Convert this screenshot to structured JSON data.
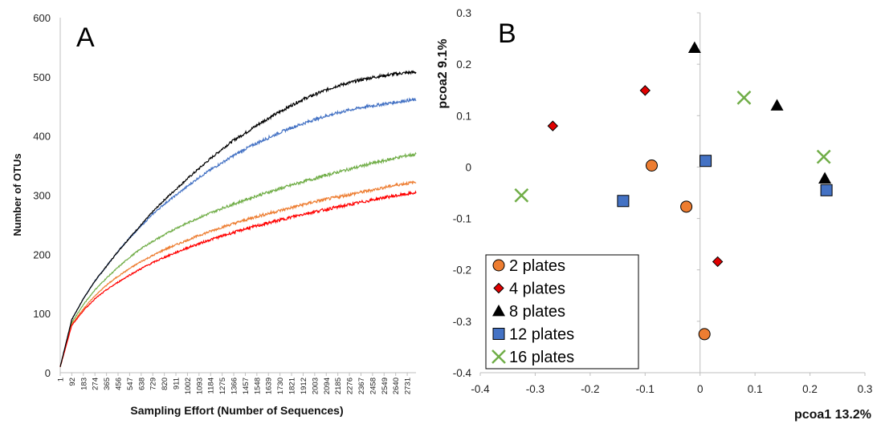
{
  "chart_data": [
    {
      "panel": "A",
      "type": "line",
      "xlabel": "Sampling Effort (Number of Sequences)",
      "ylabel": "Number of OTUs",
      "ylim": [
        0,
        600
      ],
      "yticks": [
        "0",
        "100",
        "200",
        "300",
        "400",
        "500",
        "600"
      ],
      "xtick_labels": [
        "1",
        "92",
        "183",
        "274",
        "365",
        "456",
        "547",
        "638",
        "729",
        "820",
        "911",
        "1002",
        "1093",
        "1184",
        "1275",
        "1366",
        "1457",
        "1548",
        "1639",
        "1730",
        "1821",
        "1912",
        "2003",
        "2094",
        "2185",
        "2276",
        "2367",
        "2458",
        "2549",
        "2640",
        "2731"
      ],
      "xlim": [
        1,
        2800
      ],
      "grid": false,
      "series": [
        {
          "color": "#000000",
          "x": [
            1,
            92,
            183,
            274,
            365,
            456,
            547,
            638,
            729,
            820,
            911,
            1002,
            1093,
            1184,
            1275,
            1366,
            1457,
            1548,
            1639,
            1730,
            1821,
            1912,
            2003,
            2094,
            2185,
            2276,
            2367,
            2458,
            2549,
            2640,
            2731,
            2800
          ],
          "values": [
            10,
            90,
            125,
            155,
            180,
            205,
            228,
            250,
            272,
            292,
            310,
            328,
            345,
            362,
            378,
            393,
            405,
            418,
            430,
            441,
            452,
            462,
            470,
            478,
            485,
            490,
            495,
            499,
            502,
            505,
            507,
            508
          ]
        },
        {
          "color": "#4472c4",
          "x": [
            1,
            92,
            183,
            274,
            365,
            456,
            547,
            638,
            729,
            820,
            911,
            1002,
            1093,
            1184,
            1275,
            1366,
            1457,
            1548,
            1639,
            1730,
            1821,
            1912,
            2003,
            2094,
            2185,
            2276,
            2367,
            2458,
            2549,
            2640,
            2731,
            2800
          ],
          "values": [
            10,
            90,
            125,
            155,
            180,
            205,
            228,
            248,
            268,
            285,
            300,
            315,
            330,
            343,
            355,
            367,
            378,
            388,
            397,
            406,
            414,
            421,
            428,
            434,
            439,
            444,
            448,
            451,
            454,
            457,
            460,
            461
          ]
        },
        {
          "color": "#70ad47",
          "x": [
            1,
            92,
            183,
            274,
            365,
            456,
            547,
            638,
            729,
            820,
            911,
            1002,
            1093,
            1184,
            1275,
            1366,
            1457,
            1548,
            1639,
            1730,
            1821,
            1912,
            2003,
            2094,
            2185,
            2276,
            2367,
            2458,
            2549,
            2640,
            2731,
            2800
          ],
          "values": [
            10,
            85,
            115,
            140,
            160,
            178,
            195,
            210,
            222,
            233,
            244,
            253,
            262,
            270,
            278,
            285,
            292,
            299,
            305,
            311,
            317,
            323,
            328,
            334,
            339,
            344,
            349,
            354,
            358,
            363,
            367,
            369
          ]
        },
        {
          "color": "#ed7d31",
          "x": [
            1,
            92,
            183,
            274,
            365,
            456,
            547,
            638,
            729,
            820,
            911,
            1002,
            1093,
            1184,
            1275,
            1366,
            1457,
            1548,
            1639,
            1730,
            1821,
            1912,
            2003,
            2094,
            2185,
            2276,
            2367,
            2458,
            2549,
            2640,
            2731,
            2800
          ],
          "values": [
            10,
            82,
            108,
            130,
            148,
            163,
            176,
            188,
            198,
            208,
            216,
            224,
            232,
            239,
            246,
            252,
            258,
            264,
            269,
            274,
            279,
            284,
            289,
            293,
            297,
            301,
            305,
            309,
            313,
            317,
            320,
            322
          ]
        },
        {
          "color": "#ff0000",
          "x": [
            1,
            92,
            183,
            274,
            365,
            456,
            547,
            638,
            729,
            820,
            911,
            1002,
            1093,
            1184,
            1275,
            1366,
            1457,
            1548,
            1639,
            1730,
            1821,
            1912,
            2003,
            2094,
            2185,
            2276,
            2367,
            2458,
            2549,
            2640,
            2731,
            2800
          ],
          "values": [
            10,
            80,
            105,
            125,
            140,
            153,
            165,
            176,
            186,
            195,
            203,
            211,
            218,
            225,
            231,
            237,
            243,
            248,
            253,
            258,
            263,
            268,
            272,
            276,
            280,
            284,
            288,
            292,
            296,
            299,
            302,
            304
          ]
        }
      ]
    },
    {
      "panel": "B",
      "type": "scatter",
      "xlabel": "pcoa1 13.2%",
      "ylabel": "pcoa2 9.1%",
      "xlim": [
        -0.4,
        0.3
      ],
      "ylim": [
        -0.4,
        0.3
      ],
      "xticks": [
        "-0.4",
        "-0.3",
        "-0.2",
        "-0.1",
        "0",
        "0.1",
        "0.2",
        "0.3"
      ],
      "yticks": [
        "0.3",
        "0.2",
        "0.1",
        "0",
        "-0.1",
        "-0.2",
        "-0.3",
        "-0.4"
      ],
      "legend_position": "bottom-left",
      "grid": false,
      "series": [
        {
          "name": "2 plates",
          "marker": "circle",
          "color": "#ed7d31",
          "points": [
            [
              -0.088,
              0.003
            ],
            [
              -0.025,
              -0.077
            ],
            [
              0.008,
              -0.325
            ]
          ]
        },
        {
          "name": "4 plates",
          "marker": "diamond",
          "color": "#e00000",
          "points": [
            [
              -0.268,
              0.08
            ],
            [
              -0.1,
              0.149
            ],
            [
              0.032,
              -0.184
            ]
          ]
        },
        {
          "name": "8 plates",
          "marker": "triangle",
          "color": "#000000",
          "points": [
            [
              -0.01,
              0.232
            ],
            [
              0.14,
              0.12
            ],
            [
              0.227,
              -0.022
            ]
          ]
        },
        {
          "name": "12 plates",
          "marker": "square",
          "color": "#4472c4",
          "points": [
            [
              -0.14,
              -0.066
            ],
            [
              0.01,
              0.012
            ],
            [
              0.23,
              -0.045
            ]
          ]
        },
        {
          "name": "16 plates",
          "marker": "x",
          "color": "#70ad47",
          "points": [
            [
              -0.325,
              -0.055
            ],
            [
              0.08,
              0.135
            ],
            [
              0.225,
              0.02
            ]
          ]
        }
      ]
    }
  ]
}
